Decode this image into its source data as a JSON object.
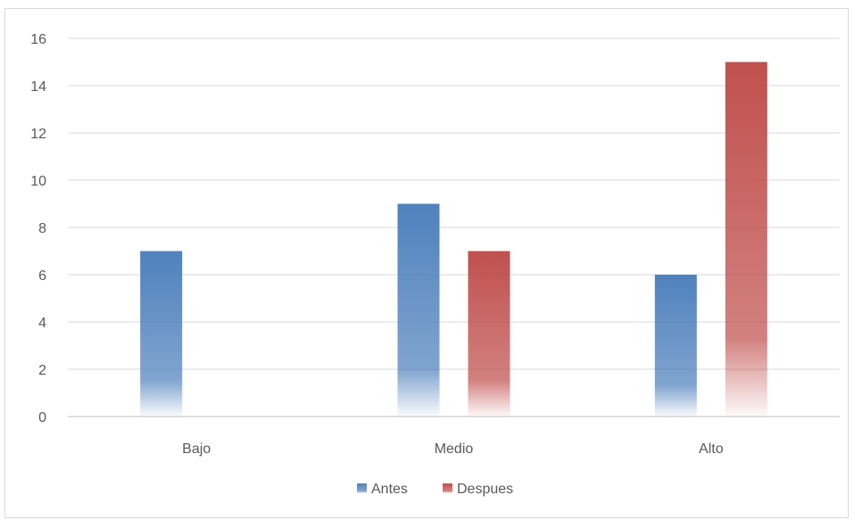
{
  "chart_data": {
    "type": "bar",
    "title": "",
    "xlabel": "",
    "ylabel": "",
    "categories": [
      "Bajo",
      "Medio",
      "Alto"
    ],
    "series": [
      {
        "name": "Antes",
        "values": [
          7,
          9,
          6
        ],
        "color": "#4f81bd"
      },
      {
        "name": "Despues",
        "values": [
          0,
          7,
          15
        ],
        "color": "#c0504d"
      }
    ],
    "ylim": [
      0,
      16
    ],
    "yticks": [
      0,
      2,
      4,
      6,
      8,
      10,
      12,
      14,
      16
    ],
    "grid": true,
    "legend_position": "bottom",
    "bar_fill": "vertical gradient fading to white at base"
  }
}
